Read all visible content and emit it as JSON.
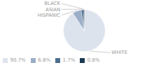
{
  "chart_data": {
    "type": "pie",
    "categories": [
      "WHITE",
      "HISPANIC",
      "ASIAN",
      "BLACK"
    ],
    "values": [
      90.7,
      6.8,
      1.7,
      0.8
    ],
    "value_labels": [
      "90.7%",
      "6.8%",
      "1.7%",
      "0.8%"
    ],
    "colors": [
      "#dde3ed",
      "#9baec8",
      "#4d6e8e",
      "#1c3a52"
    ],
    "legend": "bottom"
  }
}
